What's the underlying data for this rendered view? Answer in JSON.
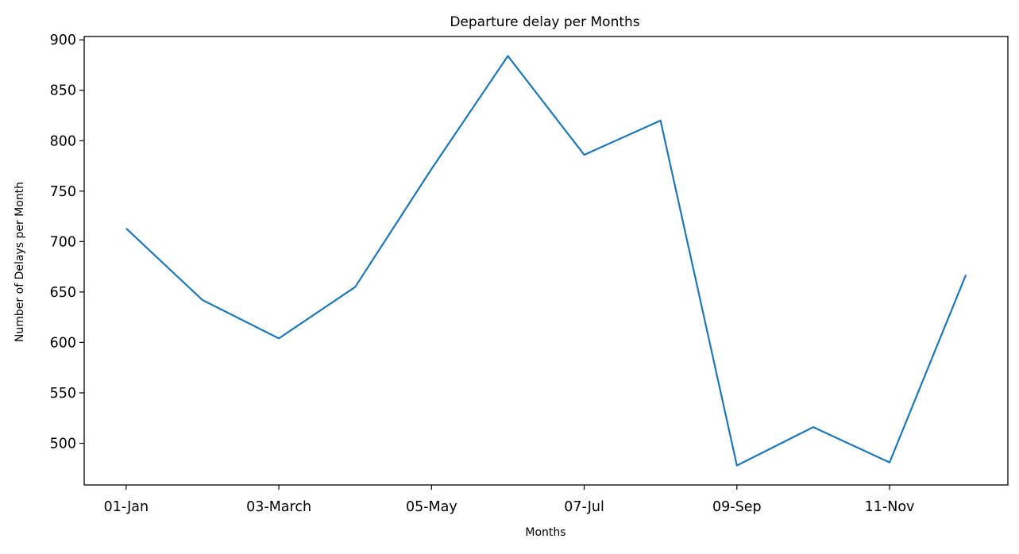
{
  "chart_data": {
    "type": "line",
    "title": "Departure delay per Months",
    "xlabel": "Months",
    "ylabel": "Number of Delays per Month",
    "x": [
      1,
      2,
      3,
      4,
      5,
      6,
      7,
      8,
      9,
      10,
      11,
      12
    ],
    "series": [
      {
        "values": [
          713,
          642,
          604,
          655,
          772,
          884,
          786,
          820,
          478,
          516,
          481,
          667
        ],
        "color": "#1f77b4"
      }
    ],
    "x_ticks": [
      {
        "x": 1,
        "label": "01-Jan"
      },
      {
        "x": 3,
        "label": "03-March"
      },
      {
        "x": 5,
        "label": "05-May"
      },
      {
        "x": 7,
        "label": "07-Jul"
      },
      {
        "x": 9,
        "label": "09-Sep"
      },
      {
        "x": 11,
        "label": "11-Nov"
      }
    ],
    "y_ticks": [
      500,
      550,
      600,
      650,
      700,
      750,
      800,
      850,
      900
    ],
    "xlim": [
      0.45,
      12.55
    ],
    "ylim": [
      458.7,
      903.3
    ],
    "grid": false,
    "legend": "none"
  }
}
